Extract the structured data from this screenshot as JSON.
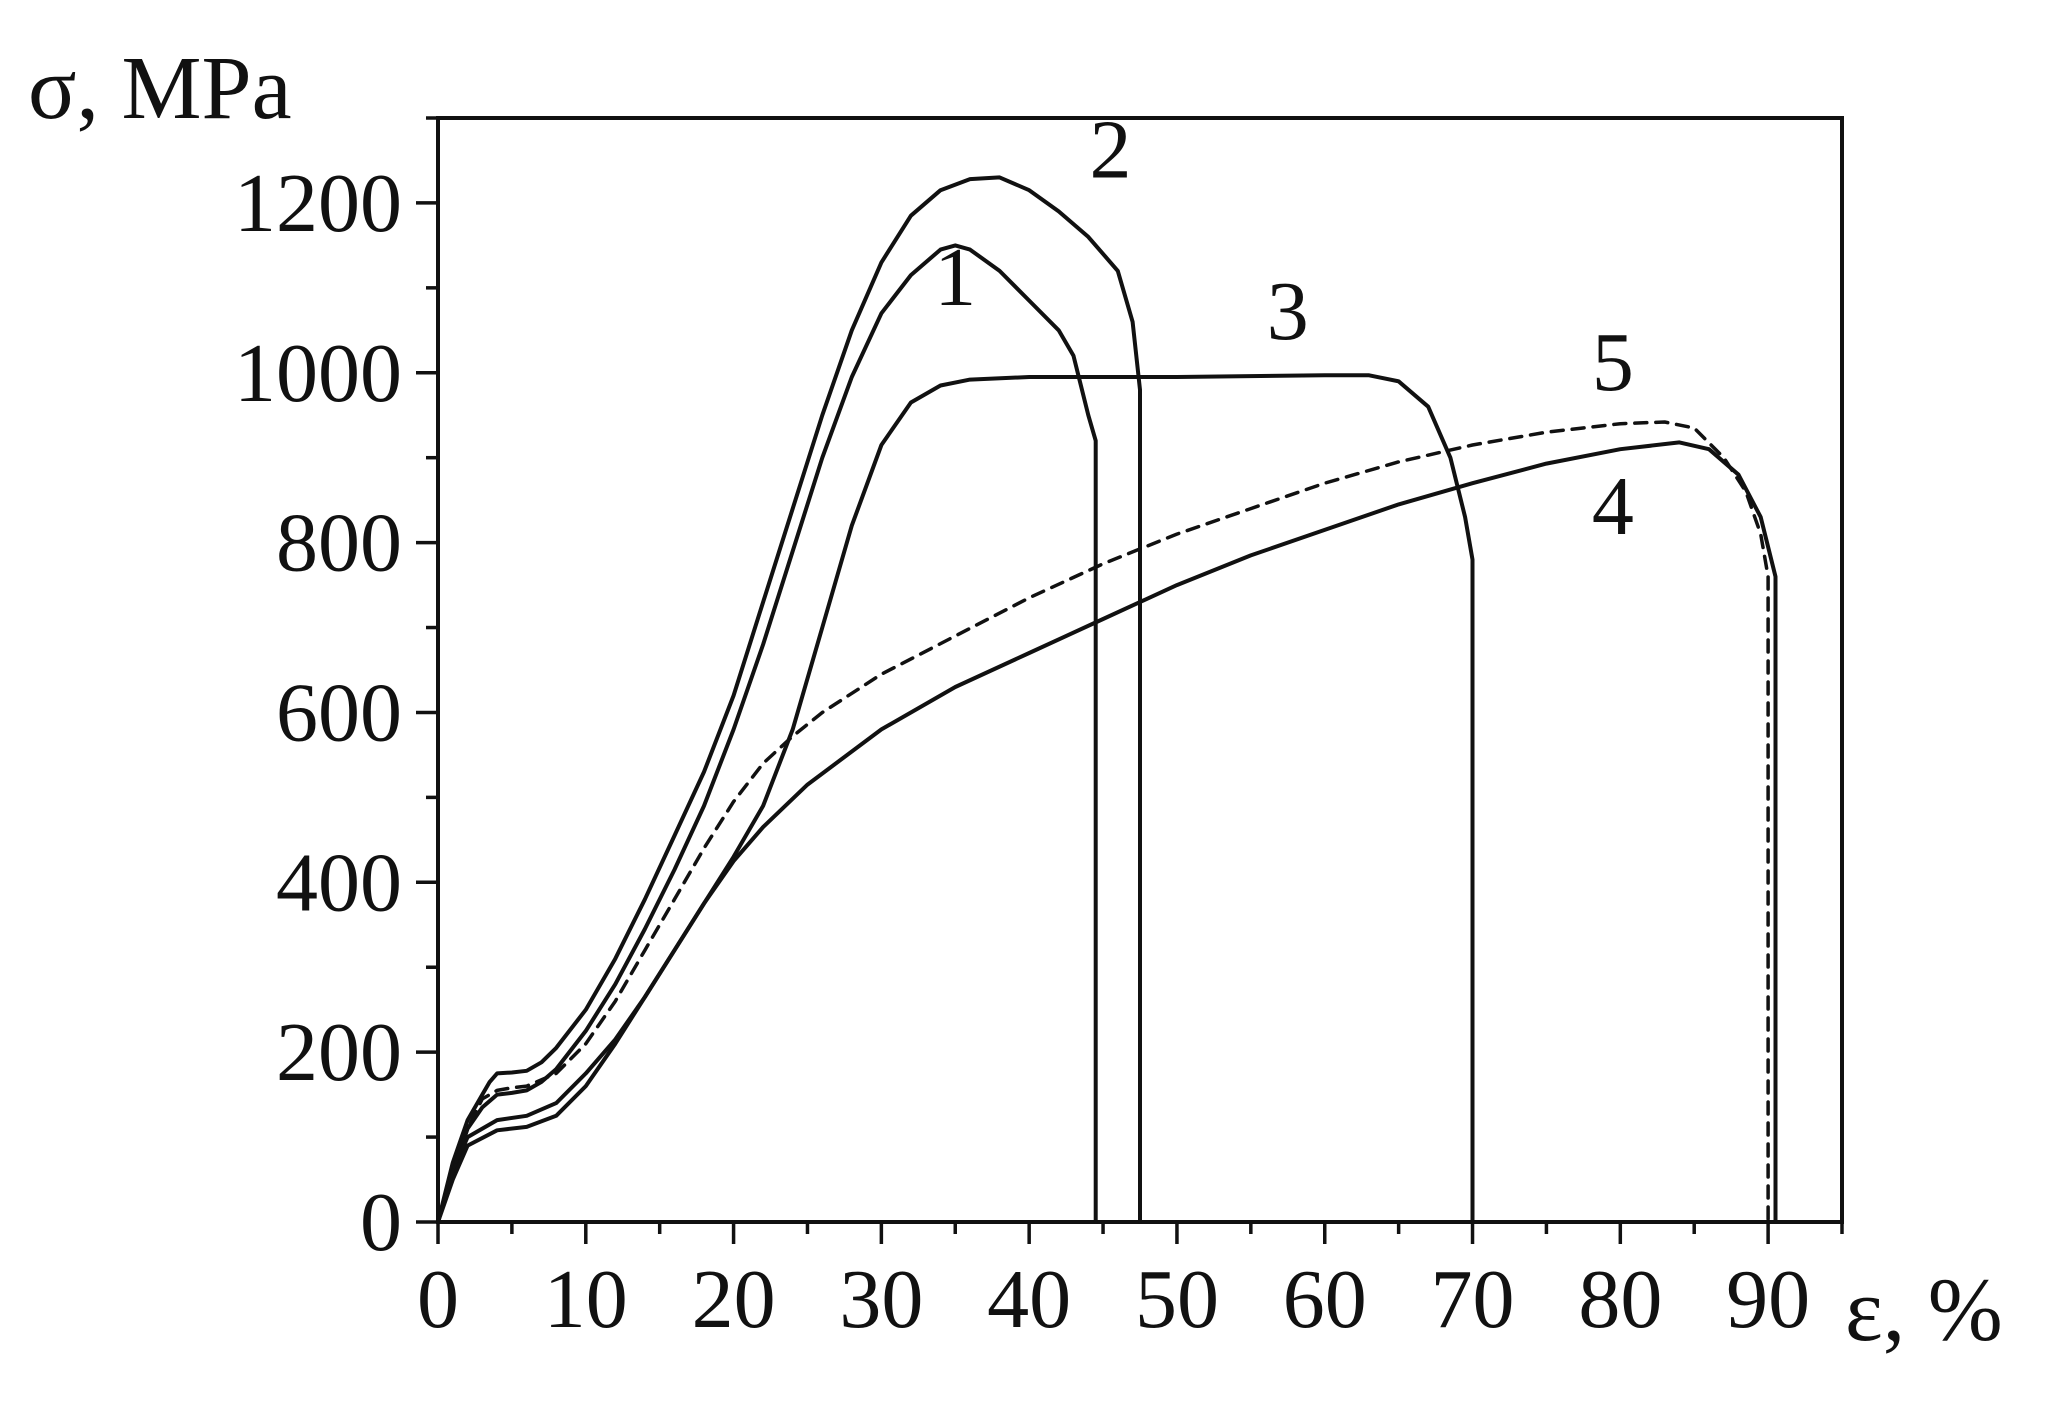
{
  "chart_data": {
    "type": "line",
    "title": "",
    "xlabel": "ε, %",
    "ylabel": "σ, MPa",
    "xlim": [
      0,
      95
    ],
    "ylim": [
      0,
      1300
    ],
    "x_ticks": [
      "0",
      "10",
      "20",
      "30",
      "40",
      "50",
      "60",
      "70",
      "80",
      "90"
    ],
    "y_ticks": [
      "0",
      "200",
      "400",
      "600",
      "800",
      "1000",
      "1200"
    ],
    "grid": false,
    "legend": "none",
    "colors": {
      "line": "#111111",
      "background": "#ffffff"
    },
    "series": [
      {
        "name": "1",
        "style": "solid",
        "points": [
          [
            0,
            0
          ],
          [
            1,
            60
          ],
          [
            2,
            110
          ],
          [
            3,
            135
          ],
          [
            4,
            150
          ],
          [
            5,
            152
          ],
          [
            6,
            155
          ],
          [
            7,
            165
          ],
          [
            8,
            180
          ],
          [
            10,
            225
          ],
          [
            12,
            280
          ],
          [
            14,
            345
          ],
          [
            16,
            415
          ],
          [
            18,
            490
          ],
          [
            20,
            580
          ],
          [
            22,
            680
          ],
          [
            24,
            790
          ],
          [
            26,
            900
          ],
          [
            28,
            995
          ],
          [
            30,
            1070
          ],
          [
            32,
            1115
          ],
          [
            34,
            1145
          ],
          [
            35,
            1150
          ],
          [
            36,
            1145
          ],
          [
            38,
            1120
          ],
          [
            40,
            1085
          ],
          [
            42,
            1050
          ],
          [
            43,
            1020
          ],
          [
            44,
            950
          ],
          [
            44.5,
            920
          ],
          [
            44.5,
            0
          ]
        ]
      },
      {
        "name": "2",
        "style": "solid",
        "points": [
          [
            0,
            0
          ],
          [
            1,
            70
          ],
          [
            2,
            120
          ],
          [
            3,
            150
          ],
          [
            3.5,
            165
          ],
          [
            4,
            175
          ],
          [
            5,
            176
          ],
          [
            6,
            178
          ],
          [
            7,
            188
          ],
          [
            8,
            205
          ],
          [
            10,
            250
          ],
          [
            12,
            310
          ],
          [
            14,
            380
          ],
          [
            16,
            455
          ],
          [
            18,
            530
          ],
          [
            20,
            620
          ],
          [
            22,
            730
          ],
          [
            24,
            840
          ],
          [
            26,
            950
          ],
          [
            28,
            1050
          ],
          [
            30,
            1130
          ],
          [
            32,
            1185
          ],
          [
            34,
            1215
          ],
          [
            36,
            1228
          ],
          [
            38,
            1230
          ],
          [
            40,
            1215
          ],
          [
            42,
            1190
          ],
          [
            44,
            1160
          ],
          [
            46,
            1120
          ],
          [
            47,
            1060
          ],
          [
            47.5,
            980
          ],
          [
            47.5,
            0
          ]
        ]
      },
      {
        "name": "3",
        "style": "solid",
        "points": [
          [
            0,
            0
          ],
          [
            1,
            60
          ],
          [
            2,
            100
          ],
          [
            4,
            120
          ],
          [
            6,
            125
          ],
          [
            8,
            140
          ],
          [
            10,
            175
          ],
          [
            12,
            215
          ],
          [
            14,
            265
          ],
          [
            16,
            320
          ],
          [
            18,
            375
          ],
          [
            20,
            430
          ],
          [
            22,
            490
          ],
          [
            24,
            580
          ],
          [
            26,
            700
          ],
          [
            28,
            820
          ],
          [
            30,
            915
          ],
          [
            32,
            965
          ],
          [
            34,
            985
          ],
          [
            36,
            992
          ],
          [
            40,
            995
          ],
          [
            50,
            995
          ],
          [
            60,
            997
          ],
          [
            63,
            997
          ],
          [
            65,
            990
          ],
          [
            67,
            960
          ],
          [
            68.5,
            900
          ],
          [
            69.5,
            830
          ],
          [
            70,
            780
          ],
          [
            70,
            0
          ]
        ]
      },
      {
        "name": "4",
        "style": "solid",
        "points": [
          [
            0,
            0
          ],
          [
            1,
            50
          ],
          [
            2,
            90
          ],
          [
            4,
            108
          ],
          [
            6,
            112
          ],
          [
            8,
            125
          ],
          [
            10,
            160
          ],
          [
            12,
            210
          ],
          [
            14,
            265
          ],
          [
            16,
            320
          ],
          [
            18,
            375
          ],
          [
            20,
            425
          ],
          [
            22,
            465
          ],
          [
            25,
            515
          ],
          [
            30,
            580
          ],
          [
            35,
            630
          ],
          [
            40,
            670
          ],
          [
            45,
            710
          ],
          [
            50,
            750
          ],
          [
            55,
            785
          ],
          [
            60,
            815
          ],
          [
            65,
            845
          ],
          [
            70,
            870
          ],
          [
            75,
            893
          ],
          [
            80,
            910
          ],
          [
            84,
            918
          ],
          [
            86,
            910
          ],
          [
            88,
            880
          ],
          [
            89.5,
            830
          ],
          [
            90.5,
            760
          ],
          [
            90.5,
            0
          ]
        ]
      },
      {
        "name": "5",
        "style": "dashed",
        "points": [
          [
            0,
            0
          ],
          [
            1,
            60
          ],
          [
            2,
            110
          ],
          [
            3,
            145
          ],
          [
            4,
            155
          ],
          [
            5,
            158
          ],
          [
            6,
            160
          ],
          [
            8,
            175
          ],
          [
            10,
            210
          ],
          [
            12,
            260
          ],
          [
            14,
            320
          ],
          [
            16,
            380
          ],
          [
            18,
            440
          ],
          [
            20,
            495
          ],
          [
            22,
            540
          ],
          [
            24,
            572
          ],
          [
            26,
            600
          ],
          [
            30,
            645
          ],
          [
            35,
            690
          ],
          [
            40,
            735
          ],
          [
            45,
            775
          ],
          [
            50,
            810
          ],
          [
            55,
            840
          ],
          [
            60,
            870
          ],
          [
            65,
            895
          ],
          [
            70,
            915
          ],
          [
            75,
            930
          ],
          [
            80,
            940
          ],
          [
            83,
            942
          ],
          [
            85,
            935
          ],
          [
            87,
            900
          ],
          [
            88.5,
            860
          ],
          [
            89.5,
            810
          ],
          [
            90,
            760
          ],
          [
            90,
            0
          ]
        ]
      }
    ],
    "curve_labels": [
      {
        "text": "1",
        "x": 35,
        "y": 1080
      },
      {
        "text": "2",
        "x": 45.5,
        "y": 1230
      },
      {
        "text": "3",
        "x": 57.5,
        "y": 1040
      },
      {
        "text": "4",
        "x": 79.5,
        "y": 810
      },
      {
        "text": "5",
        "x": 79.5,
        "y": 980
      }
    ]
  }
}
